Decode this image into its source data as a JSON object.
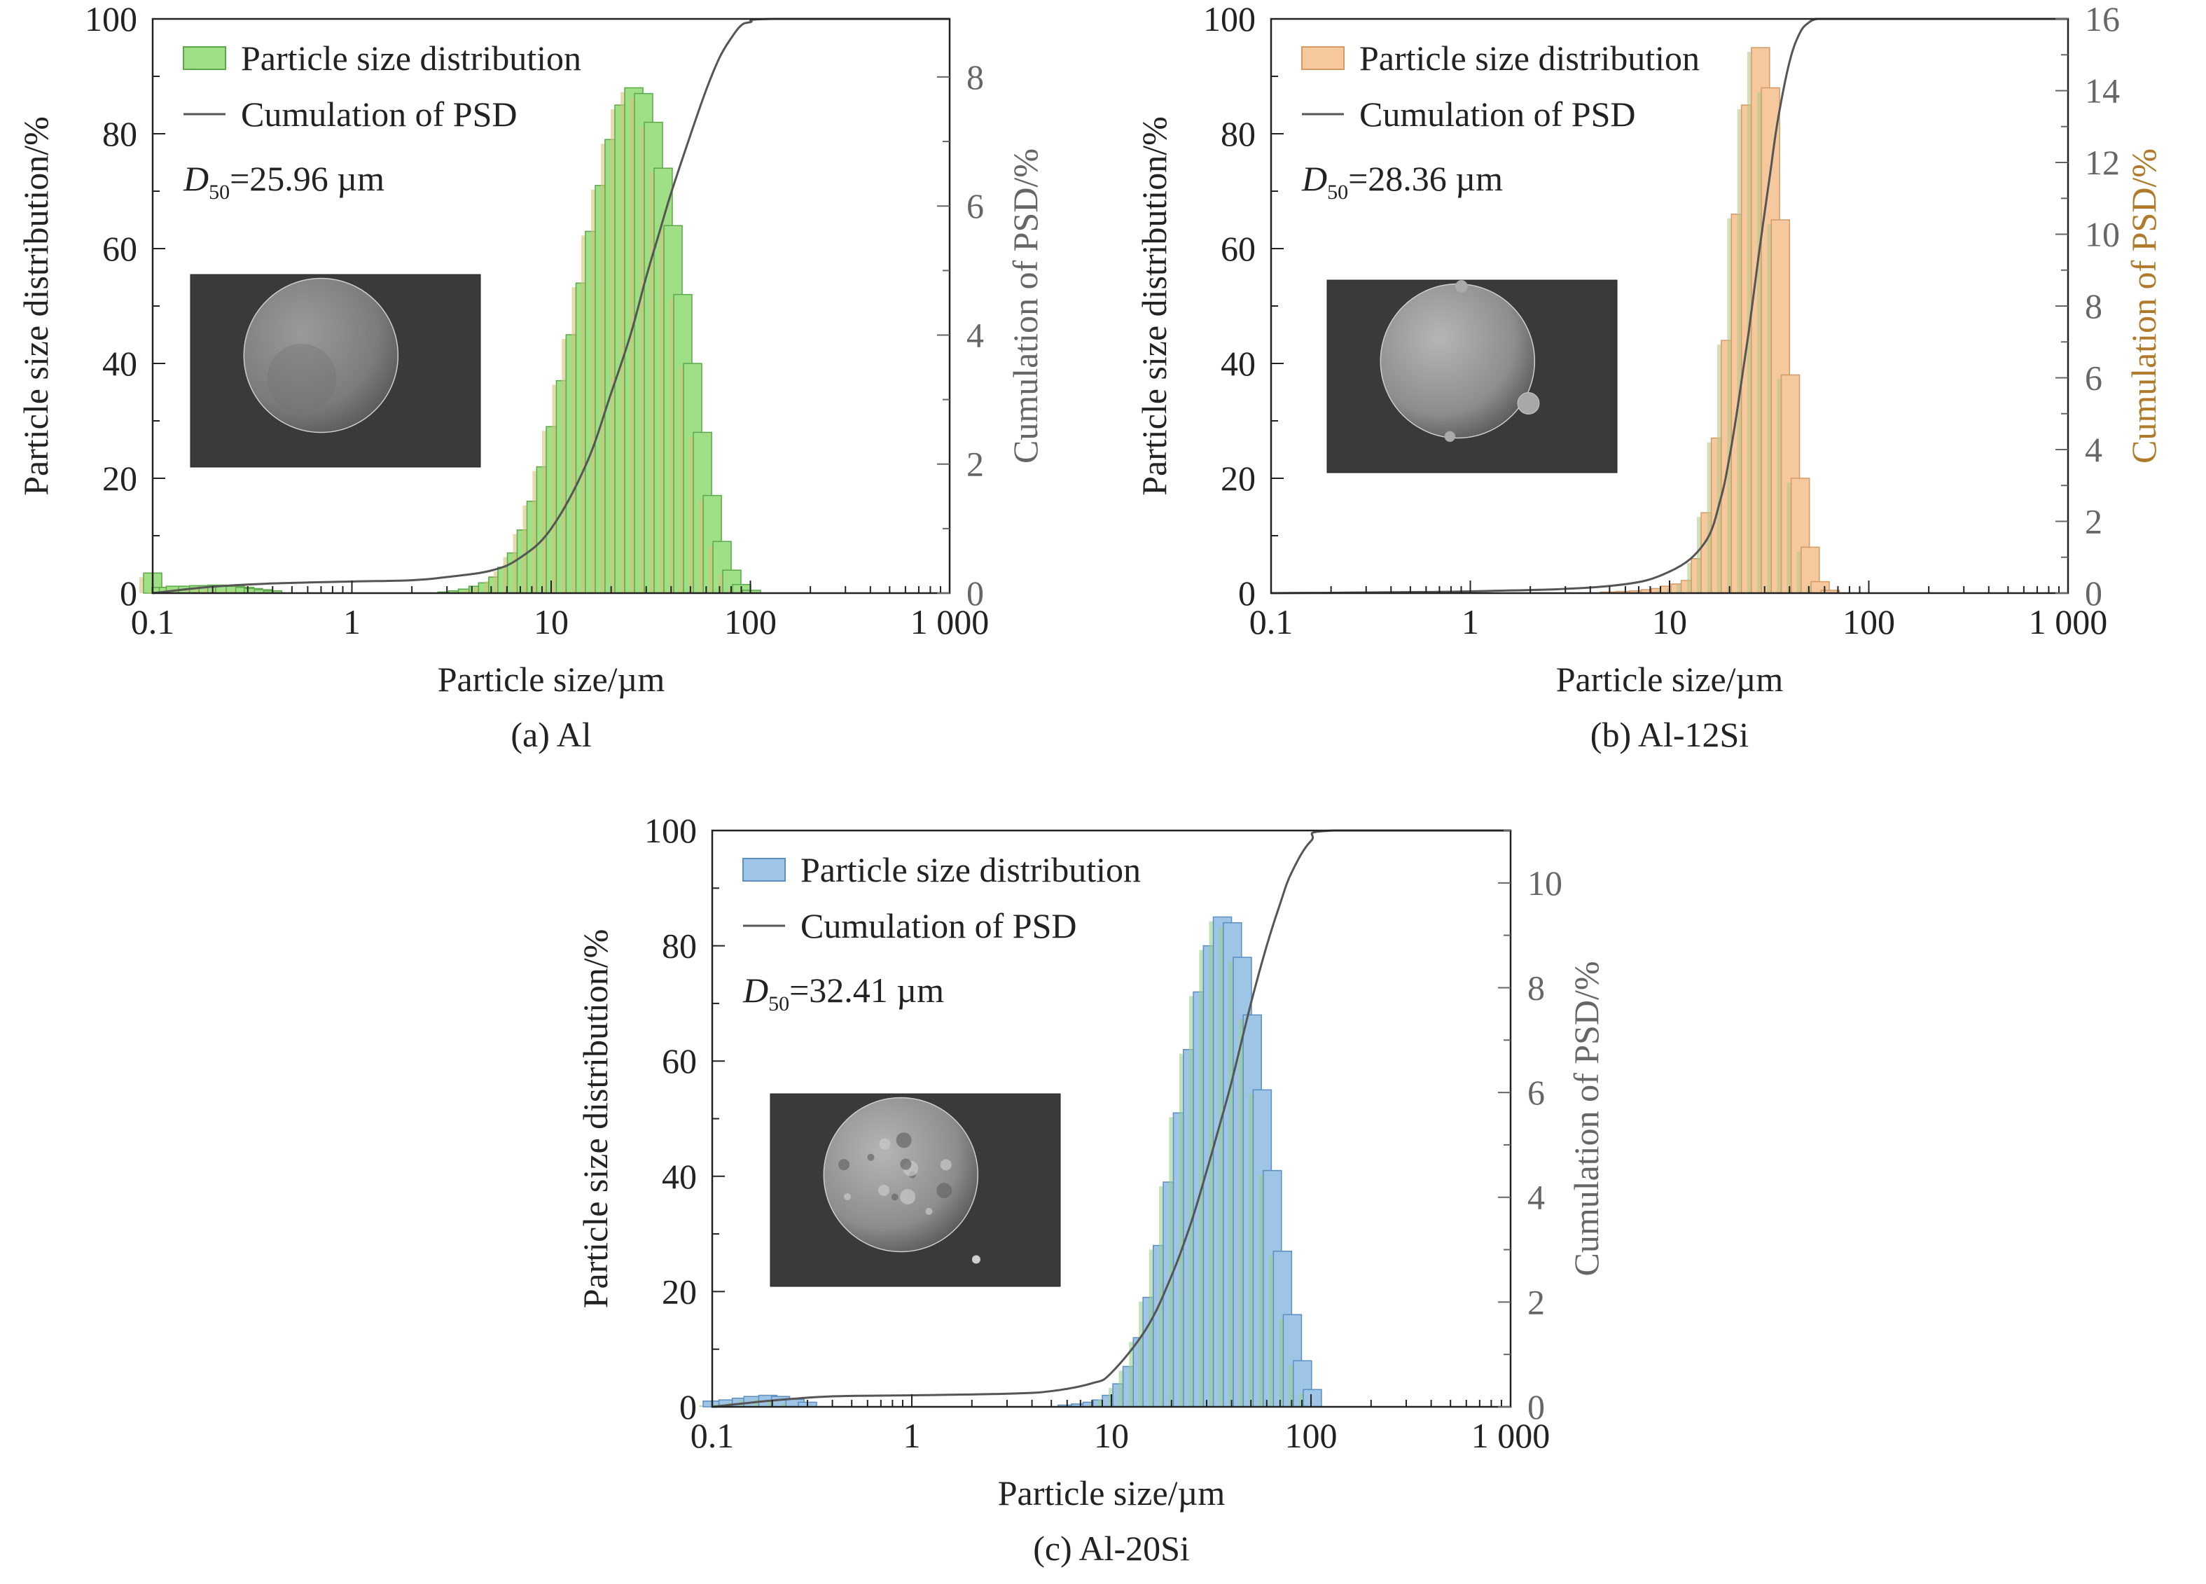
{
  "chart_data": [
    {
      "type": "bar",
      "panel_caption": "(a) Al",
      "xlabel": "Particle size/µm",
      "ylabel": "Particle size distribution/%",
      "y2label": "Cumulation of PSD/%",
      "xscale": "log",
      "xlim": [
        0.1,
        1000
      ],
      "xticks": [
        "0.1",
        "1",
        "10",
        "100",
        "1 000"
      ],
      "ylim": [
        0,
        100
      ],
      "yticks": [
        "0",
        "20",
        "40",
        "60",
        "80",
        "100"
      ],
      "y2lim": [
        0,
        8.9
      ],
      "y2ticks": [
        "0",
        "2",
        "4",
        "6",
        "8"
      ],
      "legend": {
        "position": "top-left",
        "bar_label": "Particle size distribution",
        "line_label": "Cumulation of PSD"
      },
      "annotation": {
        "symbol": "D",
        "subscript": "50",
        "text": "=25.96 µm"
      },
      "inset": "SEM image of a spherical powder particle",
      "colors": {
        "bar": "#9fdf85",
        "bar_edge": "#5aa84a",
        "bar_shadow": "#d8c27a",
        "line": "#555555"
      },
      "series": [
        {
          "name": "Particle size distribution",
          "x": [
            0.1,
            0.11,
            0.12,
            0.13,
            0.15,
            0.17,
            0.19,
            0.21,
            0.23,
            0.26,
            0.29,
            0.32,
            0.36,
            0.4,
            3,
            3.4,
            3.8,
            4.3,
            4.8,
            5.4,
            6,
            6.7,
            7.5,
            8.4,
            9.4,
            10.5,
            11.8,
            13.2,
            14.8,
            16.5,
            18.5,
            20.7,
            23.2,
            26,
            29.1,
            32.6,
            36.5,
            40.9,
            45.8,
            51.3,
            57.5,
            64.4,
            72.1,
            80.7,
            90.4,
            101.2
          ],
          "values": [
            3.5,
            1.0,
            1.0,
            1.2,
            1.2,
            1.3,
            1.3,
            1.4,
            1.3,
            1.2,
            1.0,
            0.8,
            0.6,
            0.4,
            0.2,
            0.4,
            0.7,
            1.2,
            1.8,
            2.8,
            4.5,
            7,
            11,
            16,
            22,
            29,
            37,
            45,
            54,
            63,
            71,
            79,
            85,
            88,
            87,
            82,
            74,
            64,
            52,
            40,
            28,
            17,
            9,
            4,
            1.5,
            0.5
          ]
        },
        {
          "name": "Cumulation of PSD",
          "x": [
            0.1,
            0.2,
            0.4,
            1,
            2,
            3,
            5,
            7,
            10,
            15,
            20,
            25,
            30,
            35,
            40,
            50,
            60,
            70,
            80,
            90,
            100,
            130,
            1000
          ],
          "values": [
            0.0,
            0.1,
            0.15,
            0.18,
            0.2,
            0.25,
            0.35,
            0.55,
            1.0,
            2.0,
            3.1,
            4.0,
            4.9,
            5.6,
            6.2,
            7.1,
            7.8,
            8.3,
            8.6,
            8.8,
            8.85,
            8.9,
            8.9
          ]
        }
      ]
    },
    {
      "type": "bar",
      "panel_caption": "(b) Al-12Si",
      "xlabel": "Particle size/µm",
      "ylabel": "Particle size distribution/%",
      "y2label": "Cumulation of PSD/%",
      "xscale": "log",
      "xlim": [
        0.1,
        1000
      ],
      "xticks": [
        "0.1",
        "1",
        "10",
        "100",
        "1 000"
      ],
      "ylim": [
        0,
        100
      ],
      "yticks": [
        "0",
        "20",
        "40",
        "60",
        "80",
        "100"
      ],
      "y2lim": [
        0,
        16
      ],
      "y2ticks": [
        "0",
        "2",
        "4",
        "6",
        "8",
        "10",
        "12",
        "14",
        "16"
      ],
      "legend": {
        "position": "top-left",
        "bar_label": "Particle size distribution",
        "line_label": "Cumulation of PSD"
      },
      "annotation": {
        "symbol": "D",
        "subscript": "50",
        "text": "=28.36 µm"
      },
      "inset": "SEM image of a spherical powder particle with satellites",
      "colors": {
        "bar": "#f5c89e",
        "bar_edge": "#d49a66",
        "bar_shadow": "#b8c88a",
        "line": "#555555",
        "y2_title": "#b07a2a"
      },
      "series": [
        {
          "name": "Particle size distribution",
          "x": [
            5,
            6,
            7,
            8,
            9,
            10,
            11.3,
            12.7,
            14.3,
            16,
            18,
            20.2,
            22.7,
            25.5,
            28.6,
            32.1,
            36,
            40.4,
            45.3,
            50.8,
            57,
            64
          ],
          "values": [
            0.2,
            0.3,
            0.4,
            0.6,
            0.8,
            1.2,
            1.6,
            2.2,
            6,
            14,
            27,
            44,
            66,
            85,
            95,
            88,
            65,
            38,
            20,
            8,
            2,
            0.5
          ]
        },
        {
          "name": "Cumulation of PSD",
          "x": [
            0.1,
            1,
            5,
            10,
            15,
            18,
            20,
            22,
            25,
            28,
            30,
            32,
            35,
            40,
            45,
            50,
            55,
            60,
            70,
            1000
          ],
          "values": [
            0.0,
            0.05,
            0.2,
            0.6,
            1.4,
            2.6,
            3.8,
            5.2,
            7.3,
            9.4,
            10.6,
            11.7,
            13.2,
            14.8,
            15.6,
            15.9,
            16.0,
            16.0,
            16.0,
            16.0
          ]
        }
      ]
    },
    {
      "type": "bar",
      "panel_caption": "(c) Al-20Si",
      "xlabel": "Particle size/µm",
      "ylabel": "Particle size distribution/%",
      "y2label": "Cumulation of PSD/%",
      "xscale": "log",
      "xlim": [
        0.1,
        1000
      ],
      "xticks": [
        "0.1",
        "1",
        "10",
        "100",
        "1 000"
      ],
      "ylim": [
        0,
        100
      ],
      "yticks": [
        "0",
        "20",
        "40",
        "60",
        "80",
        "100"
      ],
      "y2lim": [
        0,
        11
      ],
      "y2ticks": [
        "0",
        "2",
        "4",
        "6",
        "8",
        "10"
      ],
      "legend": {
        "position": "top-left",
        "bar_label": "Particle size distribution",
        "line_label": "Cumulation of PSD"
      },
      "annotation": {
        "symbol": "D",
        "subscript": "50",
        "text": "=32.41 µm"
      },
      "inset": "SEM image of a spherical powder particle",
      "colors": {
        "bar": "#9ec4e6",
        "bar_edge": "#5a8fc0",
        "bar_shadow": "#9ad08a",
        "line": "#555555"
      },
      "series": [
        {
          "name": "Particle size distribution",
          "x": [
            0.1,
            0.12,
            0.14,
            0.16,
            0.19,
            0.22,
            0.26,
            0.3,
            6,
            7,
            8,
            9,
            10,
            11.3,
            12.7,
            14.3,
            16,
            18,
            20.2,
            22.7,
            25.5,
            28.6,
            32.1,
            36,
            40.4,
            45.3,
            50.8,
            57,
            64,
            72,
            80.7,
            90.6,
            101.6
          ],
          "values": [
            1.0,
            1.2,
            1.5,
            1.8,
            2.0,
            1.8,
            1.3,
            0.8,
            0.3,
            0.5,
            0.8,
            1.2,
            2,
            4,
            7,
            12,
            19,
            28,
            39,
            51,
            62,
            72,
            80,
            85,
            84,
            78,
            68,
            55,
            41,
            27,
            16,
            8,
            3
          ]
        },
        {
          "name": "Cumulation of PSD",
          "x": [
            0.1,
            0.2,
            0.4,
            1,
            3,
            5,
            8,
            10,
            15,
            20,
            25,
            30,
            35,
            40,
            50,
            60,
            70,
            80,
            100,
            130,
            1000
          ],
          "values": [
            0.0,
            0.12,
            0.2,
            0.22,
            0.25,
            0.3,
            0.45,
            0.65,
            1.5,
            2.5,
            3.5,
            4.5,
            5.4,
            6.2,
            7.7,
            8.8,
            9.6,
            10.2,
            10.8,
            11.0,
            11.0
          ]
        }
      ]
    }
  ]
}
